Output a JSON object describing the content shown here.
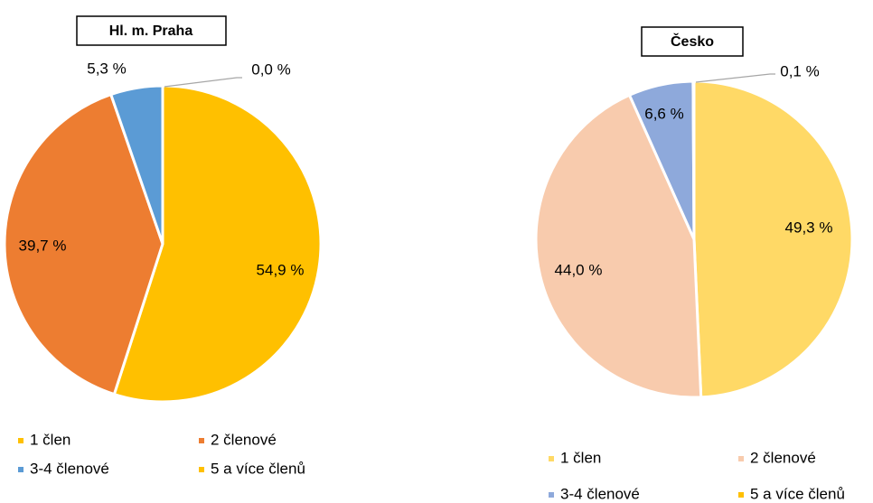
{
  "chart_data": [
    {
      "type": "pie",
      "title": "Hl. m. Praha",
      "categories": [
        "1 člen",
        "2 členové",
        "3-4 členové",
        "5 a více členů"
      ],
      "values": [
        54.9,
        39.7,
        5.3,
        0.0
      ],
      "value_labels": [
        "54,9 %",
        "39,7 %",
        "5,3 %",
        "0,0 %"
      ],
      "colors": [
        "#FFC000",
        "#ED7D31",
        "#5B9BD5",
        "#FFC000"
      ]
    },
    {
      "type": "pie",
      "title": "Česko",
      "categories": [
        "1 člen",
        "2 členové",
        "3-4 členové",
        "5 a více členů"
      ],
      "values": [
        49.3,
        44.0,
        6.6,
        0.1
      ],
      "value_labels": [
        "49,3 %",
        "44,0 %",
        "6,6 %",
        "0,1 %"
      ],
      "colors": [
        "#FFD966",
        "#F8CBAD",
        "#8EA9DB",
        "#FFC000"
      ]
    }
  ]
}
